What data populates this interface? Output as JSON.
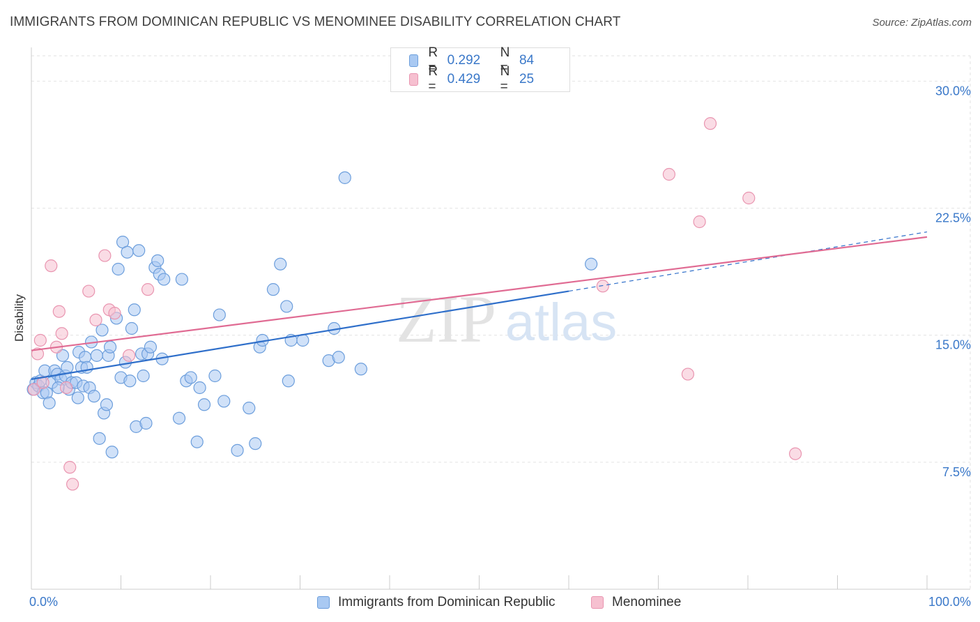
{
  "title": "IMMIGRANTS FROM DOMINICAN REPUBLIC VS MENOMINEE DISABILITY CORRELATION CHART",
  "source": "Source: ZipAtlas.com",
  "watermark": {
    "zip": "ZIP",
    "atlas": "atlas"
  },
  "legend": {
    "r_label": "R =",
    "n_label": "N =",
    "series": [
      {
        "r": "0.292",
        "n": "84"
      },
      {
        "r": "0.429",
        "n": "25"
      }
    ]
  },
  "colors": {
    "blue_fill": "#a9c9f2",
    "blue_stroke": "#6c9edc",
    "blue_line": "#2f6fca",
    "pink_fill": "#f6c0d0",
    "pink_stroke": "#e995b0",
    "pink_line": "#e06b93",
    "tick_text": "#3a78c9",
    "grid": "#e2e2e2"
  },
  "chart_data": {
    "type": "scatter",
    "title": "IMMIGRANTS FROM DOMINICAN REPUBLIC VS MENOMINEE DISABILITY CORRELATION CHART",
    "xlabel": "",
    "ylabel": "Disability",
    "xlim": [
      0,
      100
    ],
    "ylim": [
      0,
      31.5
    ],
    "x_tick_labels": [
      "0.0%",
      "100.0%"
    ],
    "y_ticks": [
      7.5,
      15.0,
      22.5,
      30.0
    ],
    "y_tick_labels": [
      "7.5%",
      "15.0%",
      "22.5%",
      "30.0%"
    ],
    "grid": true,
    "legend_position": "top-center",
    "series": [
      {
        "name": "Immigrants from Dominican Republic",
        "color": "#6c9edc",
        "r": 0.292,
        "n": 84,
        "trend": {
          "x0": 0,
          "y0": 12.4,
          "x1": 60,
          "y1": 17.6,
          "dashed_to_x": 100,
          "dashed_to_y": 21.1
        },
        "points": [
          [
            0.2,
            11.8
          ],
          [
            0.5,
            12.2
          ],
          [
            0.8,
            12.0
          ],
          [
            1.0,
            12.3
          ],
          [
            1.3,
            11.6
          ],
          [
            1.5,
            12.9
          ],
          [
            1.7,
            11.6
          ],
          [
            2.0,
            11.0
          ],
          [
            2.3,
            12.2
          ],
          [
            2.6,
            12.9
          ],
          [
            2.9,
            12.7
          ],
          [
            3.3,
            12.4
          ],
          [
            3.5,
            13.8
          ],
          [
            3.8,
            12.6
          ],
          [
            4.0,
            13.1
          ],
          [
            4.2,
            11.8
          ],
          [
            4.5,
            12.2
          ],
          [
            5.0,
            12.2
          ],
          [
            5.2,
            11.3
          ],
          [
            5.3,
            14.0
          ],
          [
            5.6,
            13.1
          ],
          [
            5.8,
            12.0
          ],
          [
            6.0,
            13.7
          ],
          [
            6.2,
            13.1
          ],
          [
            6.5,
            11.9
          ],
          [
            6.7,
            14.6
          ],
          [
            7.0,
            11.4
          ],
          [
            7.3,
            13.8
          ],
          [
            7.6,
            8.9
          ],
          [
            7.9,
            15.3
          ],
          [
            8.1,
            10.4
          ],
          [
            8.4,
            10.9
          ],
          [
            8.6,
            13.8
          ],
          [
            8.8,
            14.3
          ],
          [
            9.0,
            8.1
          ],
          [
            9.5,
            16.0
          ],
          [
            9.7,
            18.9
          ],
          [
            10.0,
            12.5
          ],
          [
            10.2,
            20.5
          ],
          [
            10.5,
            13.4
          ],
          [
            10.7,
            19.9
          ],
          [
            11.0,
            12.3
          ],
          [
            11.2,
            15.4
          ],
          [
            11.5,
            16.5
          ],
          [
            11.7,
            9.6
          ],
          [
            12.0,
            20.0
          ],
          [
            12.3,
            13.9
          ],
          [
            12.5,
            12.6
          ],
          [
            12.8,
            9.8
          ],
          [
            13.0,
            13.9
          ],
          [
            13.3,
            14.3
          ],
          [
            13.8,
            19.0
          ],
          [
            14.1,
            19.4
          ],
          [
            14.3,
            18.6
          ],
          [
            14.6,
            13.6
          ],
          [
            14.8,
            18.3
          ],
          [
            16.5,
            10.1
          ],
          [
            16.8,
            18.3
          ],
          [
            17.3,
            12.3
          ],
          [
            17.8,
            12.5
          ],
          [
            18.5,
            8.7
          ],
          [
            18.8,
            11.9
          ],
          [
            19.3,
            10.9
          ],
          [
            20.5,
            12.6
          ],
          [
            21.0,
            16.2
          ],
          [
            21.5,
            11.1
          ],
          [
            23.0,
            8.2
          ],
          [
            24.3,
            10.7
          ],
          [
            25.0,
            8.6
          ],
          [
            25.5,
            14.3
          ],
          [
            25.8,
            14.7
          ],
          [
            27.0,
            17.7
          ],
          [
            27.8,
            19.2
          ],
          [
            28.5,
            16.7
          ],
          [
            28.7,
            12.3
          ],
          [
            29.0,
            14.7
          ],
          [
            30.3,
            14.7
          ],
          [
            33.2,
            13.5
          ],
          [
            33.8,
            15.4
          ],
          [
            34.3,
            13.7
          ],
          [
            35.0,
            24.3
          ],
          [
            36.8,
            13.0
          ],
          [
            62.5,
            19.2
          ],
          [
            3.0,
            11.9
          ]
        ]
      },
      {
        "name": "Menominee",
        "color": "#e995b0",
        "r": 0.429,
        "n": 25,
        "trend": {
          "x0": 0,
          "y0": 14.1,
          "x1": 100,
          "y1": 20.8
        },
        "points": [
          [
            0.3,
            11.8
          ],
          [
            0.7,
            13.9
          ],
          [
            1.0,
            14.7
          ],
          [
            1.3,
            12.2
          ],
          [
            2.2,
            19.1
          ],
          [
            2.8,
            14.3
          ],
          [
            3.1,
            16.4
          ],
          [
            3.4,
            15.1
          ],
          [
            3.9,
            11.9
          ],
          [
            4.3,
            7.2
          ],
          [
            4.6,
            6.2
          ],
          [
            6.4,
            17.6
          ],
          [
            7.2,
            15.9
          ],
          [
            8.2,
            19.7
          ],
          [
            8.7,
            16.5
          ],
          [
            9.3,
            16.3
          ],
          [
            10.9,
            13.8
          ],
          [
            13.0,
            17.7
          ],
          [
            63.8,
            17.9
          ],
          [
            71.2,
            24.5
          ],
          [
            73.3,
            12.7
          ],
          [
            74.6,
            21.7
          ],
          [
            75.8,
            27.5
          ],
          [
            80.1,
            23.1
          ],
          [
            85.3,
            8.0
          ]
        ]
      }
    ]
  }
}
